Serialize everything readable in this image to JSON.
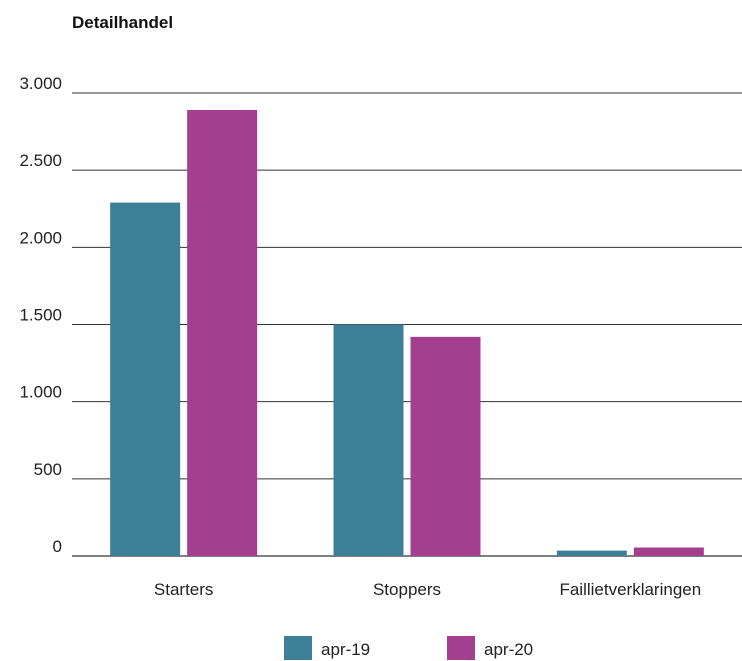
{
  "chart_data": {
    "type": "bar",
    "title": "Detailhandel",
    "xlabel": "",
    "ylabel": "",
    "categories": [
      "Starters",
      "Stoppers",
      "Faillietverklaringen"
    ],
    "series": [
      {
        "name": "apr-19",
        "color": "#3e7f98",
        "values": [
          2290,
          1500,
          35
        ]
      },
      {
        "name": "apr-20",
        "color": "#a43f8f",
        "values": [
          2890,
          1420,
          55
        ]
      }
    ],
    "ylim": [
      0,
      3000
    ],
    "yticks": [
      0,
      500,
      1000,
      1500,
      2000,
      2500,
      3000
    ],
    "ytick_labels": [
      "0",
      "500",
      "1.000",
      "1.500",
      "2.000",
      "2.500",
      "3.000"
    ],
    "grid": true,
    "legend_position": "bottom"
  }
}
